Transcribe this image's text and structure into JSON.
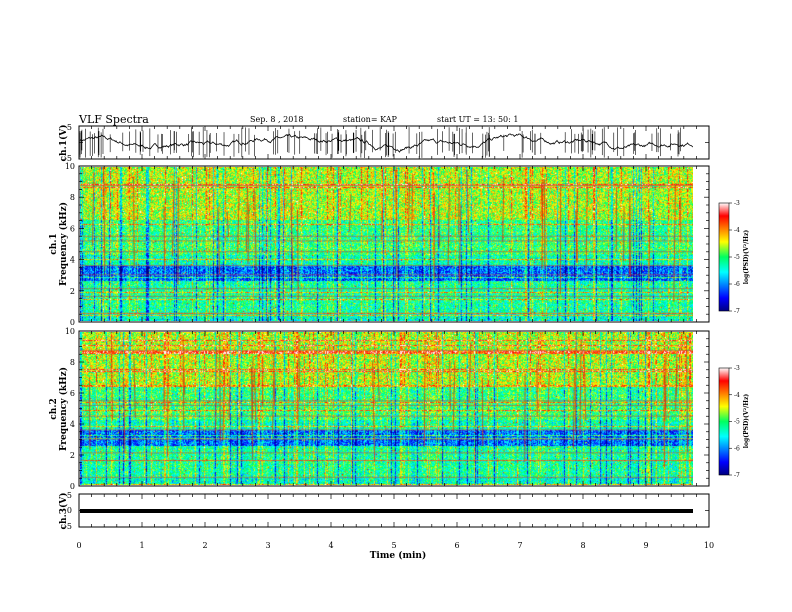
{
  "header": {
    "title": "VLF Spectra",
    "date": "Sep. 8  , 2018",
    "station": "station= KAP",
    "start_time": "start  UT  =   13: 50: 1"
  },
  "chart_data": [
    {
      "name": "ch1-waveform",
      "type": "line",
      "ylabel": "ch.1(V)",
      "ylim": [
        -5,
        5
      ],
      "y_ticks": [
        "5",
        "-5"
      ],
      "xlim": [
        0,
        10
      ],
      "series_color": "#000000"
    },
    {
      "name": "ch1-spectrogram",
      "type": "heatmap",
      "ylabel": "ch.1\nFrequency  (kHz)",
      "ylabel_line1": "ch.1",
      "ylabel_line2": "Frequency  (kHz)",
      "ylim": [
        0,
        10
      ],
      "y_ticks": [
        "0",
        "2",
        "4",
        "6",
        "8",
        "10"
      ],
      "xlim": [
        0,
        10
      ],
      "colorbar": {
        "label": "log(PSD)(V²/Hz)",
        "range": [
          -7,
          -3
        ],
        "ticks": [
          "-3",
          "-4",
          "-5",
          "-6",
          "-7"
        ]
      }
    },
    {
      "name": "ch2-spectrogram",
      "type": "heatmap",
      "ylabel_line1": "ch.2",
      "ylabel_line2": "Frequency  (kHz)",
      "ylim": [
        0,
        10
      ],
      "y_ticks": [
        "0",
        "2",
        "4",
        "6",
        "8",
        "10"
      ],
      "xlim": [
        0,
        10
      ],
      "colorbar": {
        "label": "log(PSD)(V²/Hz)",
        "range": [
          -7,
          -3
        ],
        "ticks": [
          "-3",
          "-4",
          "-5",
          "-6",
          "-7"
        ]
      }
    },
    {
      "name": "ch3-waveform",
      "type": "line",
      "ylabel": "ch.3(V)",
      "ylim": [
        -5,
        5
      ],
      "y_ticks": [
        "5",
        "0",
        "-5"
      ],
      "xlim": [
        0,
        10
      ],
      "series_color": "#000000"
    }
  ],
  "x_axis": {
    "label": "Time  (min)",
    "ticks": [
      "0",
      "1",
      "2",
      "3",
      "4",
      "5",
      "6",
      "7",
      "8",
      "9",
      "10"
    ]
  }
}
